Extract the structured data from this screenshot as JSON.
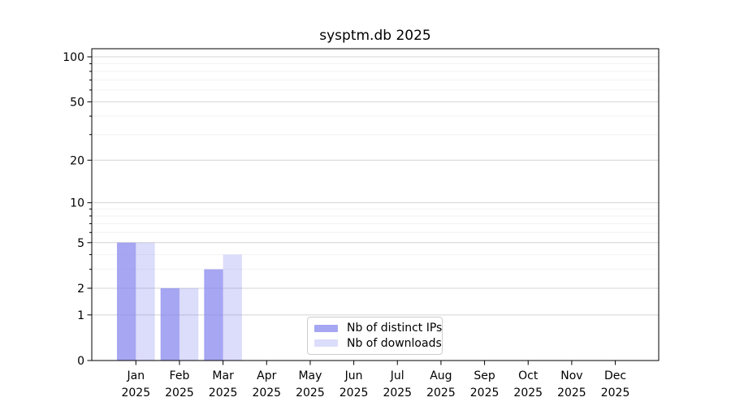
{
  "chart_data": {
    "type": "bar",
    "title": "sysptm.db 2025",
    "categories": [
      "Jan",
      "Feb",
      "Mar",
      "Apr",
      "May",
      "Jun",
      "Jul",
      "Aug",
      "Sep",
      "Oct",
      "Nov",
      "Dec"
    ],
    "x_tick_year": "2025",
    "series": [
      {
        "name": "Nb of distinct IPs",
        "values": [
          5,
          2,
          3,
          0,
          0,
          0,
          0,
          0,
          0,
          0,
          0,
          0
        ],
        "color": "rgba(131,131,239,0.72)"
      },
      {
        "name": "Nb of downloads",
        "values": [
          5,
          2,
          4,
          0,
          0,
          0,
          0,
          0,
          0,
          0,
          0,
          0
        ],
        "color": "rgba(131,131,239,0.28)"
      }
    ],
    "yscale": "log10(1+v)",
    "ylim": [
      0,
      113
    ],
    "y_ticks": [
      0,
      1,
      2,
      5,
      10,
      20,
      50,
      100
    ],
    "y_minor_ticks": [
      3,
      4,
      6,
      7,
      8,
      9,
      30,
      40,
      60,
      70,
      80,
      90
    ],
    "grid": "on",
    "legend_position": "lower-center",
    "colors": {
      "bar_base": "#8383ef",
      "major_grid": "#d4d4d4",
      "minor_grid": "#f2f2f2",
      "spine": "#000000"
    }
  }
}
